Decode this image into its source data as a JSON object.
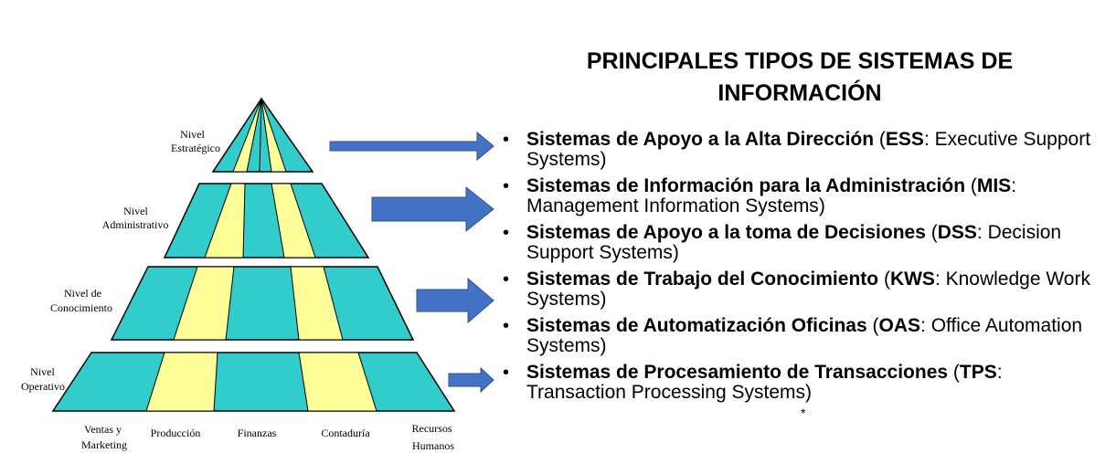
{
  "title": {
    "line1": "PRINCIPALES TIPOS DE SISTEMAS DE",
    "line2": "INFORMACIÓN"
  },
  "levels": {
    "estrategico": [
      "Nivel",
      "Estratégico"
    ],
    "administrativo": [
      "Nivel",
      "Administrativo"
    ],
    "conocimiento": [
      "Nivel de",
      "Conocimiento"
    ],
    "operativo": [
      "Nivel",
      "Operativo"
    ]
  },
  "areas": {
    "ventas": [
      "Ventas y",
      "Marketing"
    ],
    "produccion": [
      "Producción"
    ],
    "finanzas": [
      "Finanzas"
    ],
    "contaduria": [
      "Contaduría"
    ],
    "rrhh": [
      "Recursos",
      "Humanos"
    ]
  },
  "systems": [
    {
      "bullet": "•",
      "name": "Sistemas de Apoyo a la Alta Dirección",
      "open": " (",
      "acronym": "ESS",
      "sep": ": ",
      "english": "Executive Support Systems",
      "close": ")"
    },
    {
      "bullet": "•",
      "name": "Sistemas de Información para la Administración",
      "open": " (",
      "acronym": "MIS",
      "sep": ": ",
      "english": "Management Information Systems",
      "close": ")"
    },
    {
      "bullet": "•",
      "name": "Sistemas de Apoyo a la toma de Decisiones",
      "open": " (",
      "acronym": "DSS",
      "sep": ": ",
      "english": "Decision Support Systems",
      "close": ")"
    },
    {
      "bullet": "•",
      "name": "Sistemas de Trabajo del Conocimiento",
      "open": " (",
      "acronym": "KWS",
      "sep": ": ",
      "english": "Knowledge Work Systems",
      "close": ")"
    },
    {
      "bullet": "•",
      "name": "Sistemas de Automatización Oficinas",
      "open": " (",
      "acronym": "OAS",
      "sep": ": ",
      "english": "Office Automation Systems",
      "close": ")"
    },
    {
      "bullet": "•",
      "name": "Sistemas de Procesamiento de Transacciones",
      "open": " (",
      "acronym": "TPS",
      "sep": ": ",
      "english": "Transaction Processing Systems",
      "close": ")"
    }
  ],
  "footnote": "*",
  "colors": {
    "teal": "#33CCCC",
    "yellow": "#FFFF99",
    "arrow": "#4472C4",
    "outline": "#000000"
  }
}
